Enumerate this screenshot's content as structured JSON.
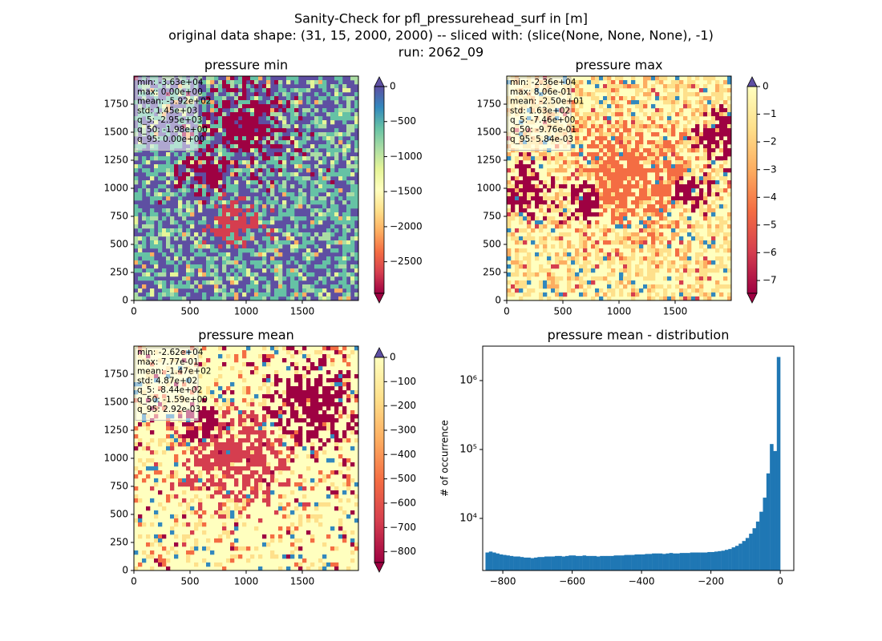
{
  "figure": {
    "title": [
      "Sanity-Check for pfl_pressurehead_surf in [m]",
      "original data shape: (31, 15, 2000, 2000) -- sliced with: (slice(None, None, None), -1)",
      "run: 2062_09"
    ]
  },
  "chart_data": [
    {
      "type": "heatmap",
      "title": "pressure min",
      "xlim": [
        0,
        2000
      ],
      "ylim": [
        0,
        2000
      ],
      "xticks": [
        0,
        500,
        1000,
        1500
      ],
      "yticks": [
        0,
        250,
        500,
        750,
        1000,
        1250,
        1500,
        1750
      ],
      "colormap": [
        "#9e0142",
        "#d53e4f",
        "#f46d43",
        "#fdae61",
        "#fee08b",
        "#ffffbf",
        "#e6f598",
        "#abdda4",
        "#66c2a5",
        "#3288bd",
        "#5e4fa2"
      ],
      "extend_colors": [
        "#9e0142",
        "#5e4fa2"
      ],
      "clim": [
        -2950,
        0
      ],
      "cticks": [
        0,
        {
          "value": -500,
          "label": "−500"
        },
        {
          "value": -1000,
          "label": "−1000"
        },
        {
          "value": -1500,
          "label": "−1500"
        },
        {
          "value": -2000,
          "label": "−2000"
        },
        {
          "value": -2500,
          "label": "−2500"
        }
      ],
      "annotation": [
        "min: -3.63e+04",
        "max: 0.00e+00",
        "mean: -5.92e+02",
        "std: 1.45e+03",
        "q_5: -2.95e+03",
        "q_50: -1.98e+00",
        "q_95: 0.00e+00"
      ]
    },
    {
      "type": "heatmap",
      "title": "pressure max",
      "xlim": [
        0,
        2000
      ],
      "ylim": [
        0,
        2000
      ],
      "xticks": [
        0,
        500,
        1000,
        1500
      ],
      "yticks": [
        0,
        250,
        500,
        750,
        1000,
        1250,
        1500,
        1750
      ],
      "colormap": [
        "#9e0142",
        "#d53e4f",
        "#f46d43",
        "#fdae61",
        "#fee08b",
        "#ffffbf"
      ],
      "extend_colors": [
        "#9e0142",
        "#5e4fa2"
      ],
      "clim": [
        -7.46,
        0
      ],
      "cticks": [
        0,
        {
          "value": -1,
          "label": "−1"
        },
        {
          "value": -2,
          "label": "−2"
        },
        {
          "value": -3,
          "label": "−3"
        },
        {
          "value": -4,
          "label": "−4"
        },
        {
          "value": -5,
          "label": "−5"
        },
        {
          "value": -6,
          "label": "−6"
        },
        {
          "value": -7,
          "label": "−7"
        }
      ],
      "annotation": [
        "min: -2.36e+04",
        "max: 8.06e-01",
        "mean: -2.50e+01",
        "std: 1.63e+02",
        "q_5: -7.46e+00",
        "q_50: -9.76e-01",
        "q_95: 5.84e-03"
      ]
    },
    {
      "type": "heatmap",
      "title": "pressure mean",
      "xlim": [
        0,
        2000
      ],
      "ylim": [
        0,
        2000
      ],
      "xticks": [
        0,
        500,
        1000,
        1500
      ],
      "yticks": [
        0,
        250,
        500,
        750,
        1000,
        1250,
        1500,
        1750
      ],
      "colormap": [
        "#9e0142",
        "#d53e4f",
        "#f46d43",
        "#fdae61",
        "#fee08b",
        "#ffffbf"
      ],
      "extend_colors": [
        "#9e0142",
        "#5e4fa2"
      ],
      "clim": [
        -844,
        0
      ],
      "cticks": [
        0,
        {
          "value": -100,
          "label": "−100"
        },
        {
          "value": -200,
          "label": "−200"
        },
        {
          "value": -300,
          "label": "−300"
        },
        {
          "value": -400,
          "label": "−400"
        },
        {
          "value": -500,
          "label": "−500"
        },
        {
          "value": -600,
          "label": "−600"
        },
        {
          "value": -700,
          "label": "−700"
        },
        {
          "value": -800,
          "label": "−800"
        }
      ],
      "annotation": [
        "min: -2.62e+04",
        "max: 7.77e-01",
        "mean: -1.47e+02",
        "std: 4.87e+02",
        "q_5: -8.44e+02",
        "q_50: -1.59e+00",
        "q_95: 2.92e-03"
      ]
    },
    {
      "type": "histogram",
      "title": "pressure mean - distribution",
      "ylabel": "# of occurrence",
      "color": "#1f77b4",
      "log_y": true,
      "xlim": [
        -858,
        39
      ],
      "ylim": [
        1754,
        3160000
      ],
      "xticks": [
        {
          "value": -800,
          "label": "−800"
        },
        {
          "value": -600,
          "label": "−600"
        },
        {
          "value": -400,
          "label": "−400"
        },
        {
          "value": -200,
          "label": "−200"
        },
        0
      ],
      "yticks": [
        {
          "value": 10000,
          "label": "10⁴"
        },
        {
          "value": 100000,
          "label": "10⁵"
        },
        {
          "value": 1000000,
          "label": "10⁶"
        }
      ],
      "bins": [
        -850,
        -840,
        -830,
        -820,
        -810,
        -800,
        -790,
        -780,
        -770,
        -760,
        -750,
        -740,
        -730,
        -720,
        -710,
        -700,
        -690,
        -680,
        -670,
        -660,
        -650,
        -640,
        -630,
        -620,
        -610,
        -600,
        -590,
        -580,
        -570,
        -560,
        -550,
        -540,
        -530,
        -520,
        -510,
        -500,
        -490,
        -480,
        -470,
        -460,
        -450,
        -440,
        -430,
        -420,
        -410,
        -400,
        -390,
        -380,
        -370,
        -360,
        -350,
        -340,
        -330,
        -320,
        -310,
        -300,
        -290,
        -280,
        -270,
        -260,
        -250,
        -240,
        -230,
        -220,
        -210,
        -200,
        -190,
        -180,
        -170,
        -160,
        -150,
        -140,
        -130,
        -120,
        -110,
        -100,
        -90,
        -80,
        -70,
        -60,
        -50,
        -40,
        -30,
        -20,
        -10,
        0
      ],
      "values": [
        3200,
        3300,
        3200,
        3100,
        3000,
        2950,
        2900,
        2850,
        2800,
        2800,
        2750,
        2700,
        2700,
        2650,
        2700,
        2750,
        2750,
        2800,
        2800,
        2800,
        2850,
        2850,
        2800,
        2850,
        2900,
        2900,
        2850,
        2850,
        2900,
        2850,
        2850,
        2850,
        2800,
        2850,
        2850,
        2850,
        2850,
        2900,
        2900,
        2900,
        2950,
        2950,
        2950,
        3000,
        3000,
        3000,
        3050,
        3050,
        3100,
        3100,
        3100,
        3050,
        3100,
        3150,
        3100,
        3100,
        3150,
        3150,
        3150,
        3200,
        3200,
        3200,
        3200,
        3200,
        3250,
        3250,
        3300,
        3350,
        3400,
        3500,
        3600,
        3800,
        4000,
        4300,
        4700,
        5200,
        6000,
        7200,
        9000,
        12500,
        20000,
        45000,
        120000,
        95000,
        2200000
      ]
    }
  ]
}
